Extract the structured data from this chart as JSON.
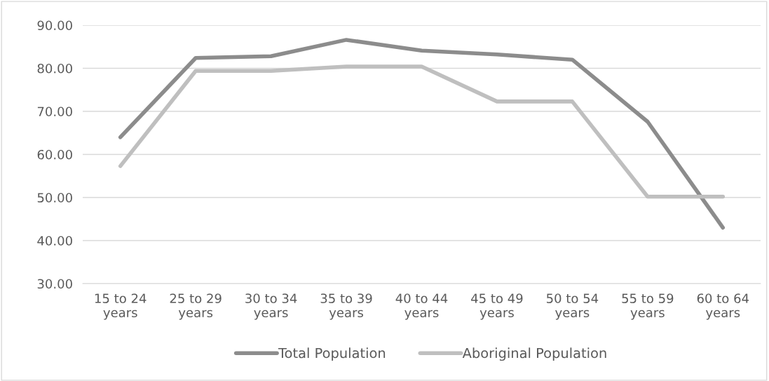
{
  "chart_data": {
    "type": "line",
    "categories": [
      "15 to 24\nyears",
      "25 to 29\nyears",
      "30 to 34\nyears",
      "35 to 39\nyears",
      "40 to 44\nyears",
      "45 to 49\nyears",
      "50 to 54\nyears",
      "55 to 59\nyears",
      "60 to 64\nyears"
    ],
    "series": [
      {
        "name": "Total Population",
        "color": "#8c8c8c",
        "values": [
          64.0,
          82.4,
          82.8,
          86.6,
          84.1,
          83.2,
          82.0,
          67.6,
          43.0
        ]
      },
      {
        "name": "Aboriginal Population",
        "color": "#bfbfbf",
        "values": [
          57.3,
          79.4,
          79.4,
          80.4,
          80.4,
          72.3,
          72.3,
          50.2,
          50.2
        ]
      }
    ],
    "ylim": [
      30,
      90
    ],
    "yticks": [
      {
        "value": 30,
        "label": "30.00"
      },
      {
        "value": 40,
        "label": "40.00"
      },
      {
        "value": 50,
        "label": "50.00"
      },
      {
        "value": 60,
        "label": "60.00"
      },
      {
        "value": 70,
        "label": "70.00"
      },
      {
        "value": 80,
        "label": "80.00"
      },
      {
        "value": 90,
        "label": "90.00"
      }
    ],
    "grid": "y",
    "legend": "bottom",
    "marker": "none",
    "line_style": "solid"
  }
}
